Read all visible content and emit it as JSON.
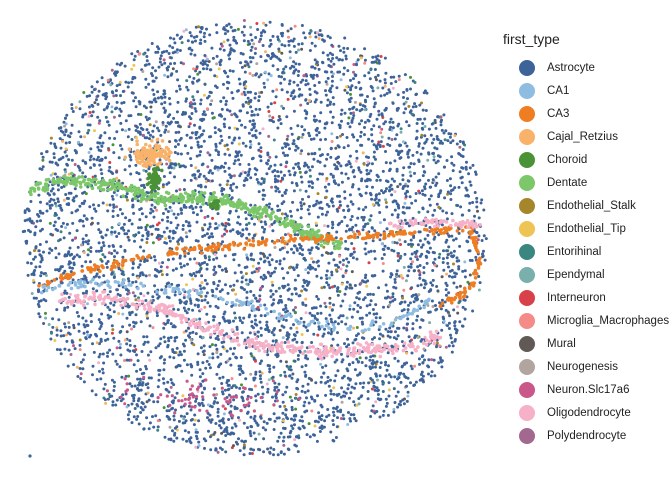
{
  "chart_data": {
    "type": "scatter",
    "title": "",
    "xlabel": "",
    "ylabel": "",
    "grid": false,
    "legend_position": "right",
    "legend": {
      "title": "first_type",
      "entries": [
        {
          "name": "Astrocyte",
          "color": "#3d6399"
        },
        {
          "name": "CA1",
          "color": "#8fbde2"
        },
        {
          "name": "CA3",
          "color": "#ef7d22"
        },
        {
          "name": "Cajal_Retzius",
          "color": "#f8b26a"
        },
        {
          "name": "Choroid",
          "color": "#4a9236"
        },
        {
          "name": "Dentate",
          "color": "#7cc76a"
        },
        {
          "name": "Endothelial_Stalk",
          "color": "#a5862a"
        },
        {
          "name": "Endothelial_Tip",
          "color": "#eec555"
        },
        {
          "name": "Entorihinal",
          "color": "#3a8781"
        },
        {
          "name": "Ependymal",
          "color": "#79b0ac"
        },
        {
          "name": "Interneuron",
          "color": "#d9414a"
        },
        {
          "name": "Microglia_Macrophages",
          "color": "#f48b87"
        },
        {
          "name": "Mural",
          "color": "#615956"
        },
        {
          "name": "Neurogenesis",
          "color": "#b2a49f"
        },
        {
          "name": "Neuron.Slc17a6",
          "color": "#c9578a"
        },
        {
          "name": "Oligodendrocyte",
          "color": "#f6b0c7"
        },
        {
          "name": "Polydendrocyte",
          "color": "#a2688f"
        }
      ]
    },
    "series_density": [
      {
        "name": "Astrocyte",
        "share": 0.68
      },
      {
        "name": "Oligodendrocyte",
        "share": 0.08
      },
      {
        "name": "Dentate",
        "share": 0.05
      },
      {
        "name": "CA3",
        "share": 0.04
      },
      {
        "name": "CA1",
        "share": 0.03
      }
    ],
    "regions": {
      "tissue_section": {
        "shape": "circle",
        "dominant_type": "Astrocyte"
      },
      "dentate_band": {
        "type": "Dentate"
      },
      "ca3_band": {
        "type": "CA3"
      },
      "oligodendrocyte_band": {
        "type": "Oligodendrocyte"
      },
      "cajal_retzius_cluster": {
        "type": "Cajal_Retzius"
      },
      "choroid_cluster": {
        "type": "Choroid"
      }
    }
  }
}
